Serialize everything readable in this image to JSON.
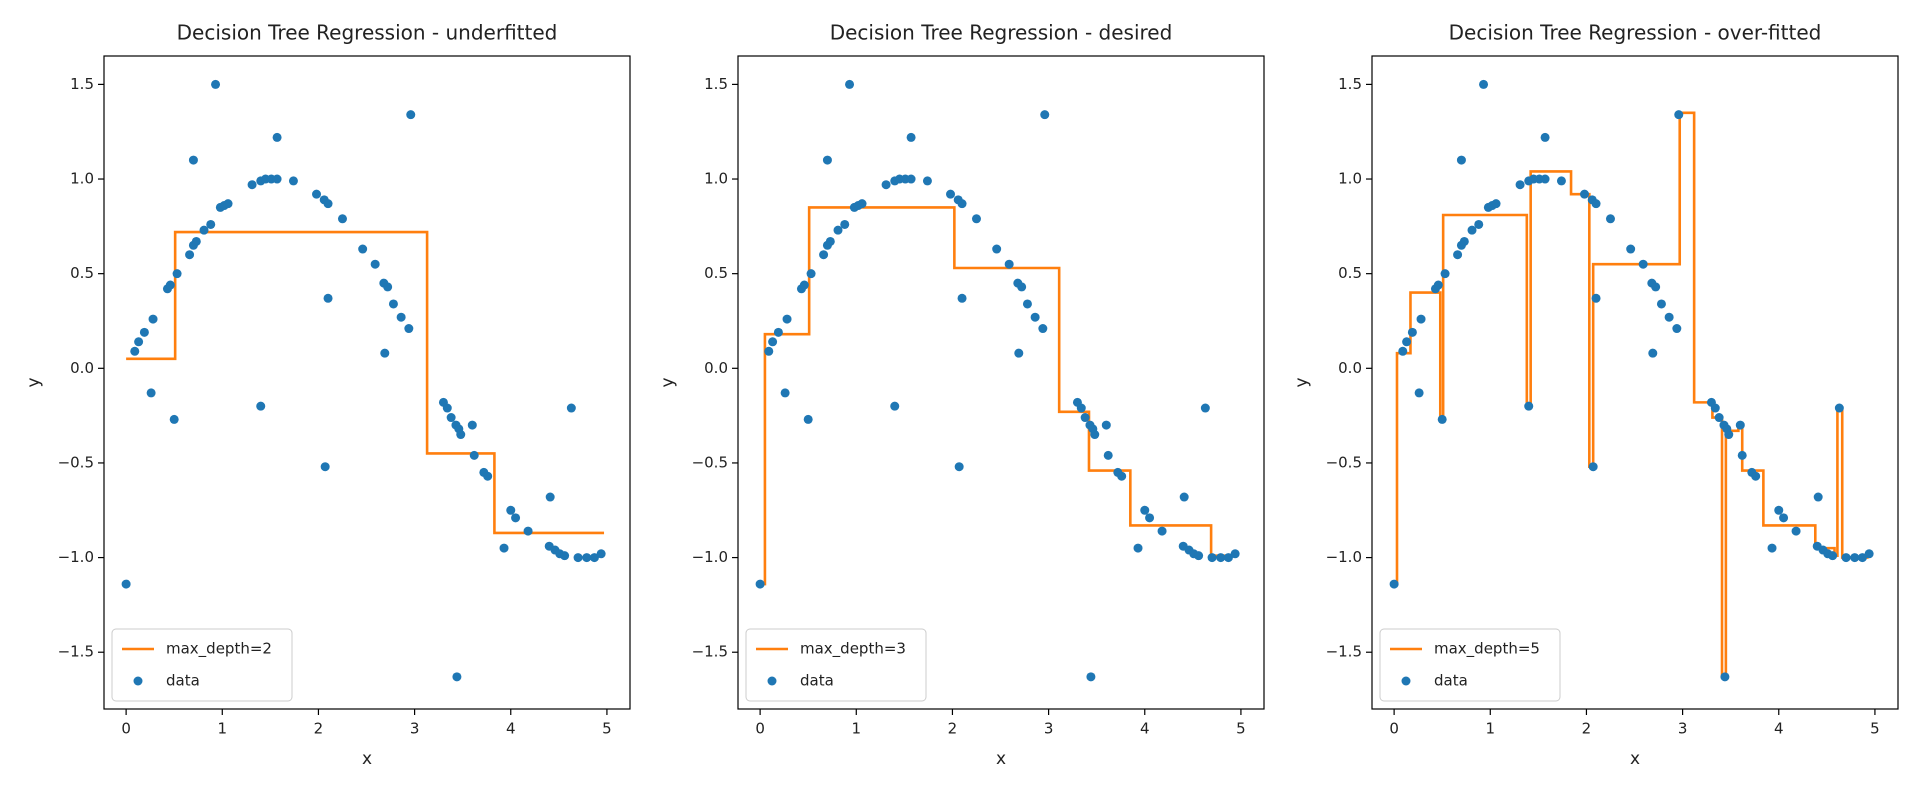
{
  "chart_data": [
    {
      "type": "line",
      "title": "Decision Tree Regression - underfitted",
      "xlabel": "x",
      "ylabel": "y",
      "xlim": [
        -0.23,
        5.24
      ],
      "ylim": [
        -1.8,
        1.65
      ],
      "xticks": [
        0,
        1,
        2,
        3,
        4,
        5
      ],
      "yticks": [
        {
          "value": -1.5,
          "label": "−1.5"
        },
        {
          "value": -1,
          "label": "−1.0"
        },
        {
          "value": -0.5,
          "label": "−0.5"
        },
        {
          "value": 0,
          "label": "0.0"
        },
        {
          "value": 0.5,
          "label": "0.5"
        },
        {
          "value": 1,
          "label": "1.0"
        },
        {
          "value": 1.5,
          "label": "1.5"
        }
      ],
      "legend": "lower left",
      "series": [
        {
          "name": "max_depth=2",
          "kind": "line",
          "color": "#ff7f0e",
          "x": [
            0,
            0.51,
            0.51,
            3.13,
            3.13,
            3.83,
            3.83,
            4.97
          ],
          "values": [
            0.05,
            0.05,
            0.72,
            0.72,
            -0.45,
            -0.45,
            -0.87,
            -0.87
          ]
        },
        {
          "name": "data",
          "kind": "scatter",
          "color": "#1f77b4",
          "x": [
            0,
            0.09,
            0.13,
            0.19,
            0.26,
            0.28,
            0.43,
            0.46,
            0.5,
            0.53,
            0.66,
            0.7,
            0.7,
            0.73,
            0.81,
            0.88,
            0.93,
            0.98,
            1.02,
            1.06,
            1.31,
            1.4,
            1.4,
            1.45,
            1.51,
            1.57,
            1.57,
            1.74,
            1.98,
            2.06,
            2.07,
            2.1,
            2.1,
            2.25,
            2.46,
            2.59,
            2.68,
            2.69,
            2.72,
            2.78,
            2.86,
            2.94,
            2.96,
            3.3,
            3.34,
            3.38,
            3.43,
            3.44,
            3.46,
            3.48,
            3.6,
            3.62,
            3.72,
            3.76,
            3.93,
            4.0,
            4.05,
            4.18,
            4.41,
            4.4,
            4.46,
            4.51,
            4.56,
            4.63,
            4.7,
            4.79,
            4.87,
            4.94
          ],
          "values": [
            -1.14,
            0.09,
            0.14,
            0.19,
            -0.13,
            0.26,
            0.42,
            0.44,
            -0.27,
            0.5,
            0.6,
            0.65,
            1.1,
            0.67,
            0.73,
            0.76,
            1.5,
            0.85,
            0.86,
            0.87,
            0.97,
            0.99,
            -0.2,
            1.0,
            1.0,
            1.22,
            1.0,
            0.99,
            0.92,
            0.89,
            -0.52,
            0.87,
            0.37,
            0.79,
            0.63,
            0.55,
            0.45,
            0.08,
            0.43,
            0.34,
            0.27,
            0.21,
            1.34,
            -0.18,
            -0.21,
            -0.26,
            -0.3,
            -1.63,
            -0.32,
            -0.35,
            -0.3,
            -0.46,
            -0.55,
            -0.57,
            -0.95,
            -0.75,
            -0.79,
            -0.86,
            -0.68,
            -0.94,
            -0.96,
            -0.98,
            -0.99,
            -0.21,
            -1.0,
            -1.0,
            -1.0,
            -0.98
          ]
        }
      ]
    },
    {
      "type": "line",
      "title": "Decision Tree Regression - desired",
      "xlabel": "x",
      "ylabel": "y",
      "xlim": [
        -0.23,
        5.24
      ],
      "ylim": [
        -1.8,
        1.65
      ],
      "xticks": [
        0,
        1,
        2,
        3,
        4,
        5
      ],
      "yticks": [
        {
          "value": -1.5,
          "label": "−1.5"
        },
        {
          "value": -1,
          "label": "−1.0"
        },
        {
          "value": -0.5,
          "label": "−0.5"
        },
        {
          "value": 0,
          "label": "0.0"
        },
        {
          "value": 0.5,
          "label": "0.5"
        },
        {
          "value": 1,
          "label": "1.0"
        },
        {
          "value": 1.5,
          "label": "1.5"
        }
      ],
      "legend": "lower left",
      "series": [
        {
          "name": "max_depth=3",
          "kind": "line",
          "color": "#ff7f0e",
          "x": [
            0,
            0.05,
            0.05,
            0.51,
            0.51,
            2.02,
            2.02,
            3.11,
            3.11,
            3.42,
            3.42,
            3.85,
            3.85,
            4.69,
            4.69,
            4.97
          ],
          "values": [
            -1.14,
            -1.14,
            0.18,
            0.18,
            0.85,
            0.85,
            0.53,
            0.53,
            -0.23,
            -0.23,
            -0.54,
            -0.54,
            -0.83,
            -0.83,
            -0.99,
            -0.99
          ]
        },
        {
          "name": "data",
          "kind": "scatter",
          "color": "#1f77b4",
          "x": [
            0,
            0.09,
            0.13,
            0.19,
            0.26,
            0.28,
            0.43,
            0.46,
            0.5,
            0.53,
            0.66,
            0.7,
            0.7,
            0.73,
            0.81,
            0.88,
            0.93,
            0.98,
            1.02,
            1.06,
            1.31,
            1.4,
            1.4,
            1.45,
            1.51,
            1.57,
            1.57,
            1.74,
            1.98,
            2.06,
            2.07,
            2.1,
            2.1,
            2.25,
            2.46,
            2.59,
            2.68,
            2.69,
            2.72,
            2.78,
            2.86,
            2.94,
            2.96,
            3.3,
            3.34,
            3.38,
            3.43,
            3.44,
            3.46,
            3.48,
            3.6,
            3.62,
            3.72,
            3.76,
            3.93,
            4.0,
            4.05,
            4.18,
            4.41,
            4.4,
            4.46,
            4.51,
            4.56,
            4.63,
            4.7,
            4.79,
            4.87,
            4.94
          ],
          "values": [
            -1.14,
            0.09,
            0.14,
            0.19,
            -0.13,
            0.26,
            0.42,
            0.44,
            -0.27,
            0.5,
            0.6,
            0.65,
            1.1,
            0.67,
            0.73,
            0.76,
            1.5,
            0.85,
            0.86,
            0.87,
            0.97,
            0.99,
            -0.2,
            1.0,
            1.0,
            1.22,
            1.0,
            0.99,
            0.92,
            0.89,
            -0.52,
            0.87,
            0.37,
            0.79,
            0.63,
            0.55,
            0.45,
            0.08,
            0.43,
            0.34,
            0.27,
            0.21,
            1.34,
            -0.18,
            -0.21,
            -0.26,
            -0.3,
            -1.63,
            -0.32,
            -0.35,
            -0.3,
            -0.46,
            -0.55,
            -0.57,
            -0.95,
            -0.75,
            -0.79,
            -0.86,
            -0.68,
            -0.94,
            -0.96,
            -0.98,
            -0.99,
            -0.21,
            -1.0,
            -1.0,
            -1.0,
            -0.98
          ]
        }
      ]
    },
    {
      "type": "line",
      "title": "Decision Tree Regression - over-fitted",
      "xlabel": "x",
      "ylabel": "y",
      "xlim": [
        -0.23,
        5.24
      ],
      "ylim": [
        -1.8,
        1.65
      ],
      "xticks": [
        0,
        1,
        2,
        3,
        4,
        5
      ],
      "yticks": [
        {
          "value": -1.5,
          "label": "−1.5"
        },
        {
          "value": -1,
          "label": "−1.0"
        },
        {
          "value": -0.5,
          "label": "−0.5"
        },
        {
          "value": 0,
          "label": "0.0"
        },
        {
          "value": 0.5,
          "label": "0.5"
        },
        {
          "value": 1,
          "label": "1.0"
        },
        {
          "value": 1.5,
          "label": "1.5"
        }
      ],
      "legend": "lower left",
      "series": [
        {
          "name": "max_depth=5",
          "kind": "line",
          "color": "#ff7f0e",
          "x": [
            0,
            0.03,
            0.03,
            0.17,
            0.17,
            0.48,
            0.48,
            0.51,
            0.51,
            1.38,
            1.38,
            1.42,
            1.42,
            1.84,
            1.84,
            2.03,
            2.03,
            2.07,
            2.07,
            2.97,
            2.97,
            3.12,
            3.12,
            3.31,
            3.31,
            3.41,
            3.41,
            3.45,
            3.45,
            3.58,
            3.58,
            3.62,
            3.62,
            3.84,
            3.84,
            4.38,
            4.38,
            4.58,
            4.58,
            4.61,
            4.61,
            4.66,
            4.66,
            4.92,
            4.92,
            4.97
          ],
          "values": [
            -1.14,
            -1.14,
            0.08,
            0.08,
            0.4,
            0.4,
            -0.27,
            -0.27,
            0.81,
            0.81,
            -0.2,
            -0.2,
            1.04,
            1.04,
            0.92,
            0.92,
            -0.52,
            -0.52,
            0.55,
            0.55,
            1.35,
            1.35,
            -0.18,
            -0.18,
            -0.26,
            -0.26,
            -1.63,
            -1.63,
            -0.33,
            -0.33,
            -0.3,
            -0.3,
            -0.54,
            -0.54,
            -0.83,
            -0.83,
            -0.95,
            -0.95,
            -0.99,
            -0.99,
            -0.21,
            -0.21,
            -1.0,
            -1.0,
            -0.98,
            -0.98
          ]
        },
        {
          "name": "data",
          "kind": "scatter",
          "color": "#1f77b4",
          "x": [
            0,
            0.09,
            0.13,
            0.19,
            0.26,
            0.28,
            0.43,
            0.46,
            0.5,
            0.53,
            0.66,
            0.7,
            0.7,
            0.73,
            0.81,
            0.88,
            0.93,
            0.98,
            1.02,
            1.06,
            1.31,
            1.4,
            1.4,
            1.45,
            1.51,
            1.57,
            1.57,
            1.74,
            1.98,
            2.06,
            2.07,
            2.1,
            2.1,
            2.25,
            2.46,
            2.59,
            2.68,
            2.69,
            2.72,
            2.78,
            2.86,
            2.94,
            2.96,
            3.3,
            3.34,
            3.38,
            3.43,
            3.44,
            3.46,
            3.48,
            3.6,
            3.62,
            3.72,
            3.76,
            3.93,
            4.0,
            4.05,
            4.18,
            4.41,
            4.4,
            4.46,
            4.51,
            4.56,
            4.63,
            4.7,
            4.79,
            4.87,
            4.94
          ],
          "values": [
            -1.14,
            0.09,
            0.14,
            0.19,
            -0.13,
            0.26,
            0.42,
            0.44,
            -0.27,
            0.5,
            0.6,
            0.65,
            1.1,
            0.67,
            0.73,
            0.76,
            1.5,
            0.85,
            0.86,
            0.87,
            0.97,
            0.99,
            -0.2,
            1.0,
            1.0,
            1.22,
            1.0,
            0.99,
            0.92,
            0.89,
            -0.52,
            0.87,
            0.37,
            0.79,
            0.63,
            0.55,
            0.45,
            0.08,
            0.43,
            0.34,
            0.27,
            0.21,
            1.34,
            -0.18,
            -0.21,
            -0.26,
            -0.3,
            -1.63,
            -0.32,
            -0.35,
            -0.3,
            -0.46,
            -0.55,
            -0.57,
            -0.95,
            -0.75,
            -0.79,
            -0.86,
            -0.68,
            -0.94,
            -0.96,
            -0.98,
            -0.99,
            -0.21,
            -1.0,
            -1.0,
            -1.0,
            -0.98
          ]
        }
      ]
    }
  ]
}
